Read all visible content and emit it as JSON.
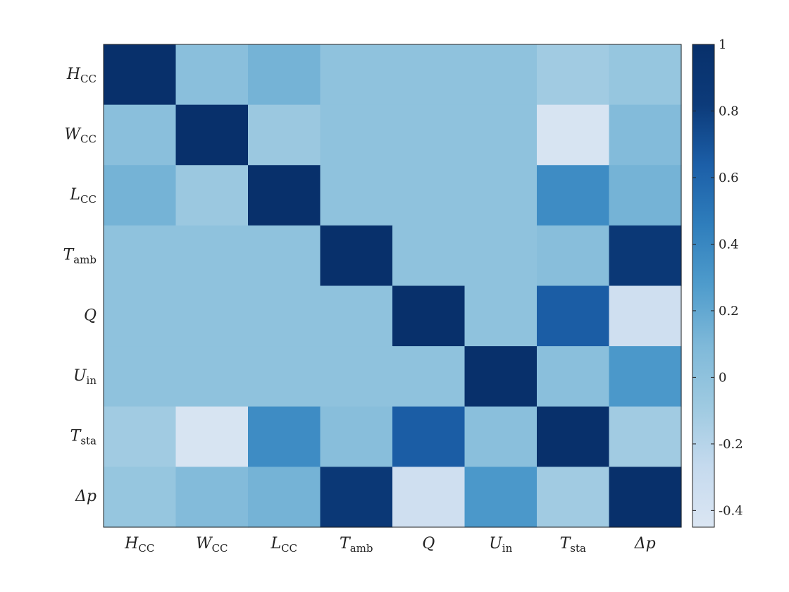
{
  "chart_data": {
    "type": "heatmap",
    "title": "",
    "xlabel": "",
    "ylabel": "",
    "variables": [
      {
        "symbol": "H",
        "sub": "CC"
      },
      {
        "symbol": "W",
        "sub": "CC"
      },
      {
        "symbol": "L",
        "sub": "CC"
      },
      {
        "symbol": "T",
        "sub": "amb"
      },
      {
        "symbol": "Q",
        "sub": ""
      },
      {
        "symbol": "U",
        "sub": "in"
      },
      {
        "symbol": "T",
        "sub": "sta"
      },
      {
        "symbol": "Δp",
        "sub": ""
      }
    ],
    "matrix": [
      [
        1.0,
        0.03,
        0.13,
        0.0,
        0.0,
        0.0,
        -0.1,
        -0.04
      ],
      [
        0.03,
        1.0,
        -0.07,
        0.0,
        0.0,
        0.0,
        -0.42,
        0.07
      ],
      [
        0.13,
        -0.07,
        1.0,
        0.0,
        0.0,
        0.0,
        0.37,
        0.13
      ],
      [
        0.0,
        0.0,
        0.0,
        1.0,
        0.0,
        0.0,
        0.04,
        0.87
      ],
      [
        0.0,
        0.0,
        0.0,
        0.0,
        1.0,
        0.0,
        0.65,
        -0.35
      ],
      [
        0.0,
        0.0,
        0.0,
        0.0,
        0.0,
        1.0,
        0.03,
        0.3
      ],
      [
        -0.1,
        -0.42,
        0.37,
        0.04,
        0.65,
        0.03,
        1.0,
        -0.1
      ],
      [
        -0.04,
        0.07,
        0.13,
        0.87,
        -0.35,
        0.3,
        -0.1,
        1.0
      ]
    ],
    "colorbar": {
      "min": -0.45,
      "max": 1.0,
      "ticks": [
        1,
        0.8,
        0.6,
        0.4,
        0.2,
        0,
        -0.2,
        -0.4
      ],
      "tick_labels": [
        "1",
        "0.8",
        "0.6",
        "0.4",
        "0.2",
        "0",
        "-0.2",
        "-0.4"
      ],
      "colormap": [
        "#dbe6f3",
        "#c5daee",
        "#9ecae1",
        "#7fb9d9",
        "#4f9ccc",
        "#2f7ebc",
        "#1c5fa8",
        "#0c3b7a",
        "#08306b"
      ],
      "position": "right"
    },
    "grid": false
  }
}
